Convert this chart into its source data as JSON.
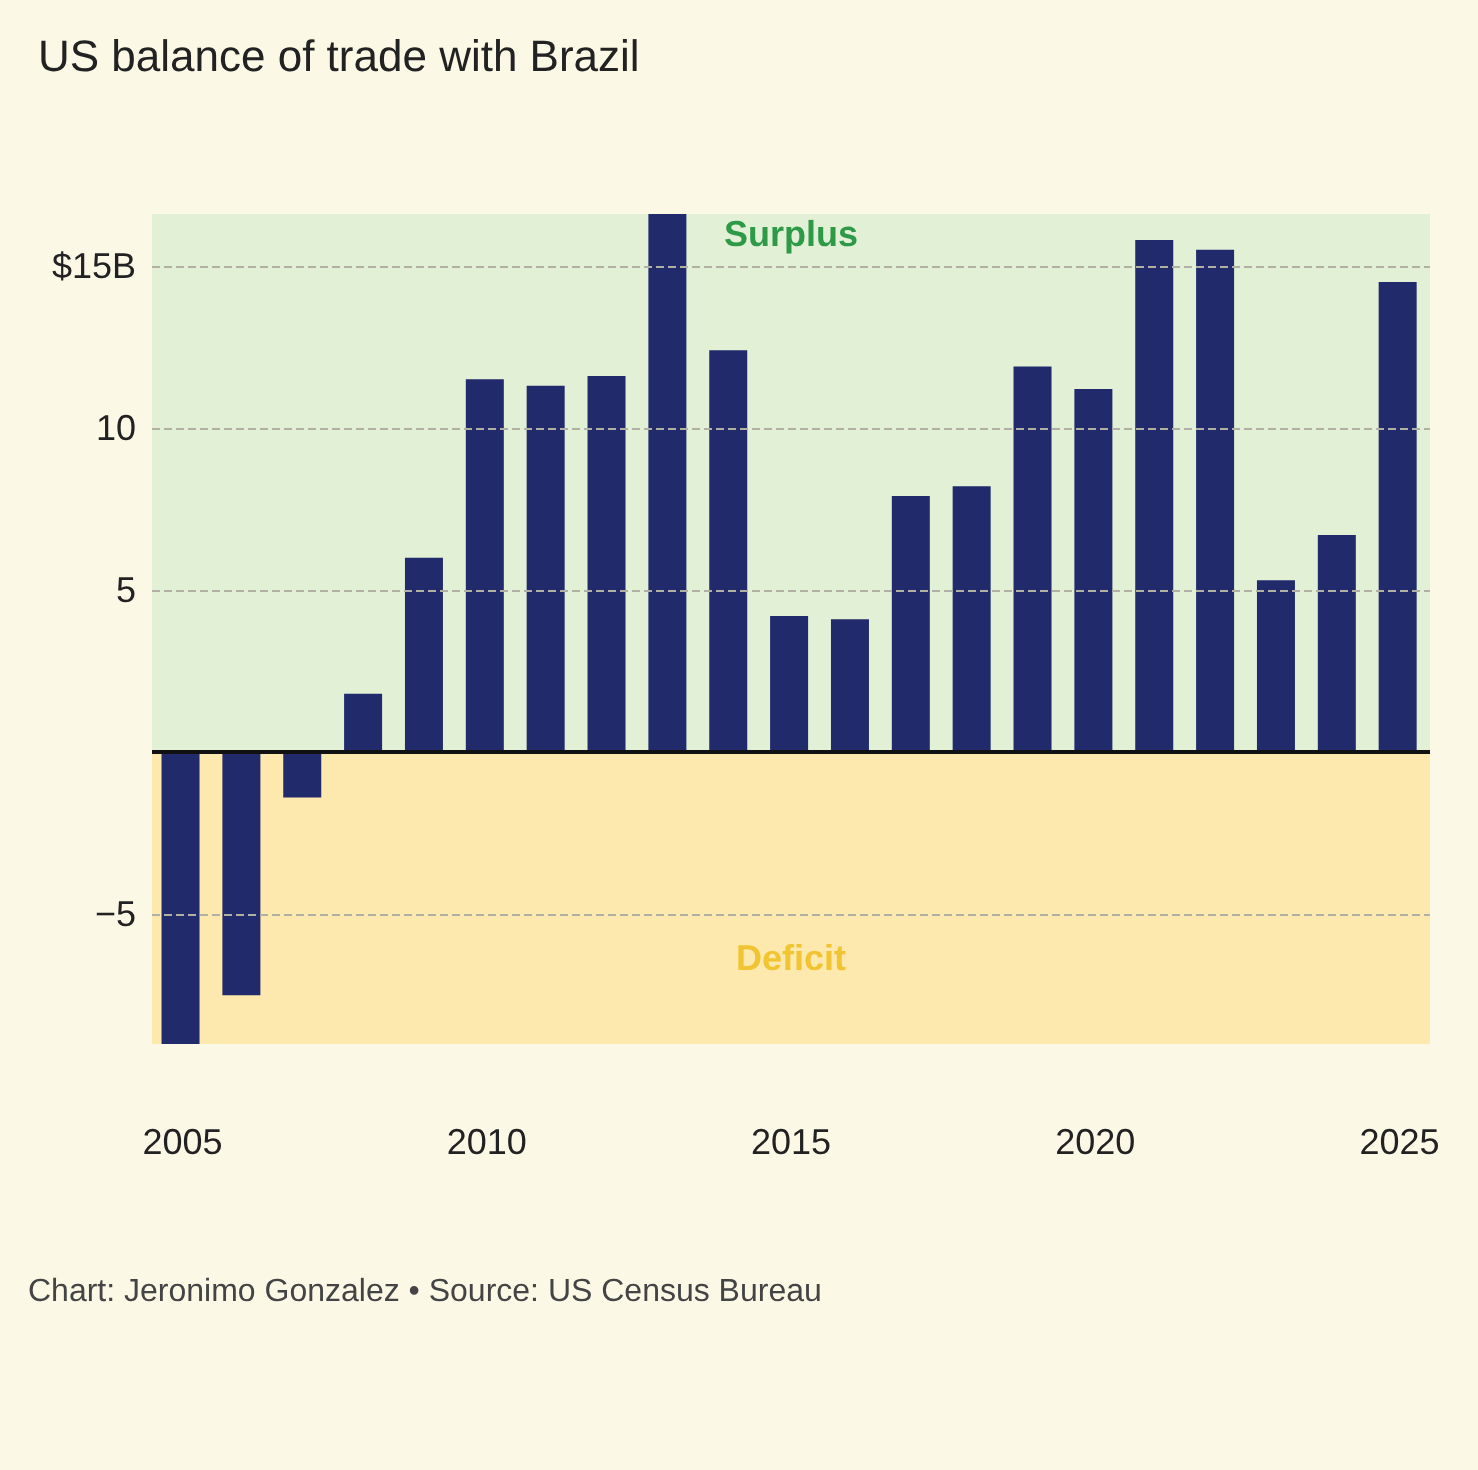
{
  "chart_data": {
    "type": "bar",
    "title": "US balance of trade with Brazil",
    "x": [
      2005,
      2006,
      2007,
      2008,
      2009,
      2010,
      2011,
      2012,
      2013,
      2014,
      2015,
      2016,
      2017,
      2018,
      2019,
      2020,
      2021,
      2022,
      2023,
      2024,
      2025
    ],
    "values": [
      -9.0,
      -7.5,
      -1.4,
      1.8,
      6.0,
      11.5,
      11.3,
      11.6,
      16.6,
      12.4,
      4.2,
      4.1,
      7.9,
      8.2,
      11.9,
      11.2,
      15.8,
      15.5,
      5.3,
      6.7,
      14.5
    ],
    "color": "#212a6b",
    "xlim": [
      2004.5,
      2025.5
    ],
    "xticks": [
      2005,
      2010,
      2015,
      2020,
      2025
    ],
    "ylim": [
      -9.0,
      16.6
    ],
    "yticks": [
      {
        "value": -5,
        "label": "−5"
      },
      5,
      10,
      {
        "value": 15,
        "label": "$15B"
      }
    ],
    "grid": "y",
    "bands": [
      {
        "axis": "y",
        "from": 0,
        "to": 16.6,
        "label": "Surplus",
        "color": "#e2f0d6"
      },
      {
        "axis": "y",
        "from": -9.0,
        "to": 0,
        "label": "Deficit",
        "color": "#fde8ad"
      }
    ],
    "annotations": [
      "Chart: Jeronimo Gonzalez • Source: US Census Bureau"
    ]
  }
}
